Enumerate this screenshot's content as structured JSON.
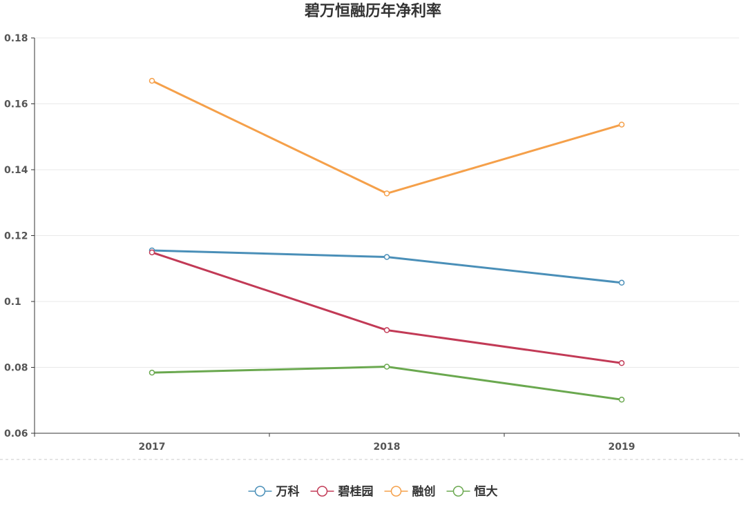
{
  "chart_data": {
    "type": "line",
    "title": "碧万恒融历年净利率",
    "xlabel": "",
    "ylabel": "",
    "categories": [
      "2017",
      "2018",
      "2019"
    ],
    "ylim": [
      0.06,
      0.18
    ],
    "yticks": [
      0.06,
      0.08,
      0.1,
      0.12,
      0.14,
      0.16,
      0.18
    ],
    "ytick_labels": [
      "0.06",
      "0.08",
      "0.1",
      "0.12",
      "0.14",
      "0.16",
      "0.18"
    ],
    "grid": true,
    "legend_position": "bottom-center",
    "series": [
      {
        "name": "万科",
        "color": "#4a8fb8",
        "values": [
          0.1155,
          0.1135,
          0.1057
        ]
      },
      {
        "name": "碧桂园",
        "color": "#c23a56",
        "values": [
          0.1149,
          0.0913,
          0.0813
        ]
      },
      {
        "name": "融创",
        "color": "#f5a04a",
        "values": [
          0.167,
          0.1328,
          0.1537
        ]
      },
      {
        "name": "恒大",
        "color": "#6aa84f",
        "values": [
          0.0784,
          0.0802,
          0.0702
        ]
      }
    ]
  }
}
